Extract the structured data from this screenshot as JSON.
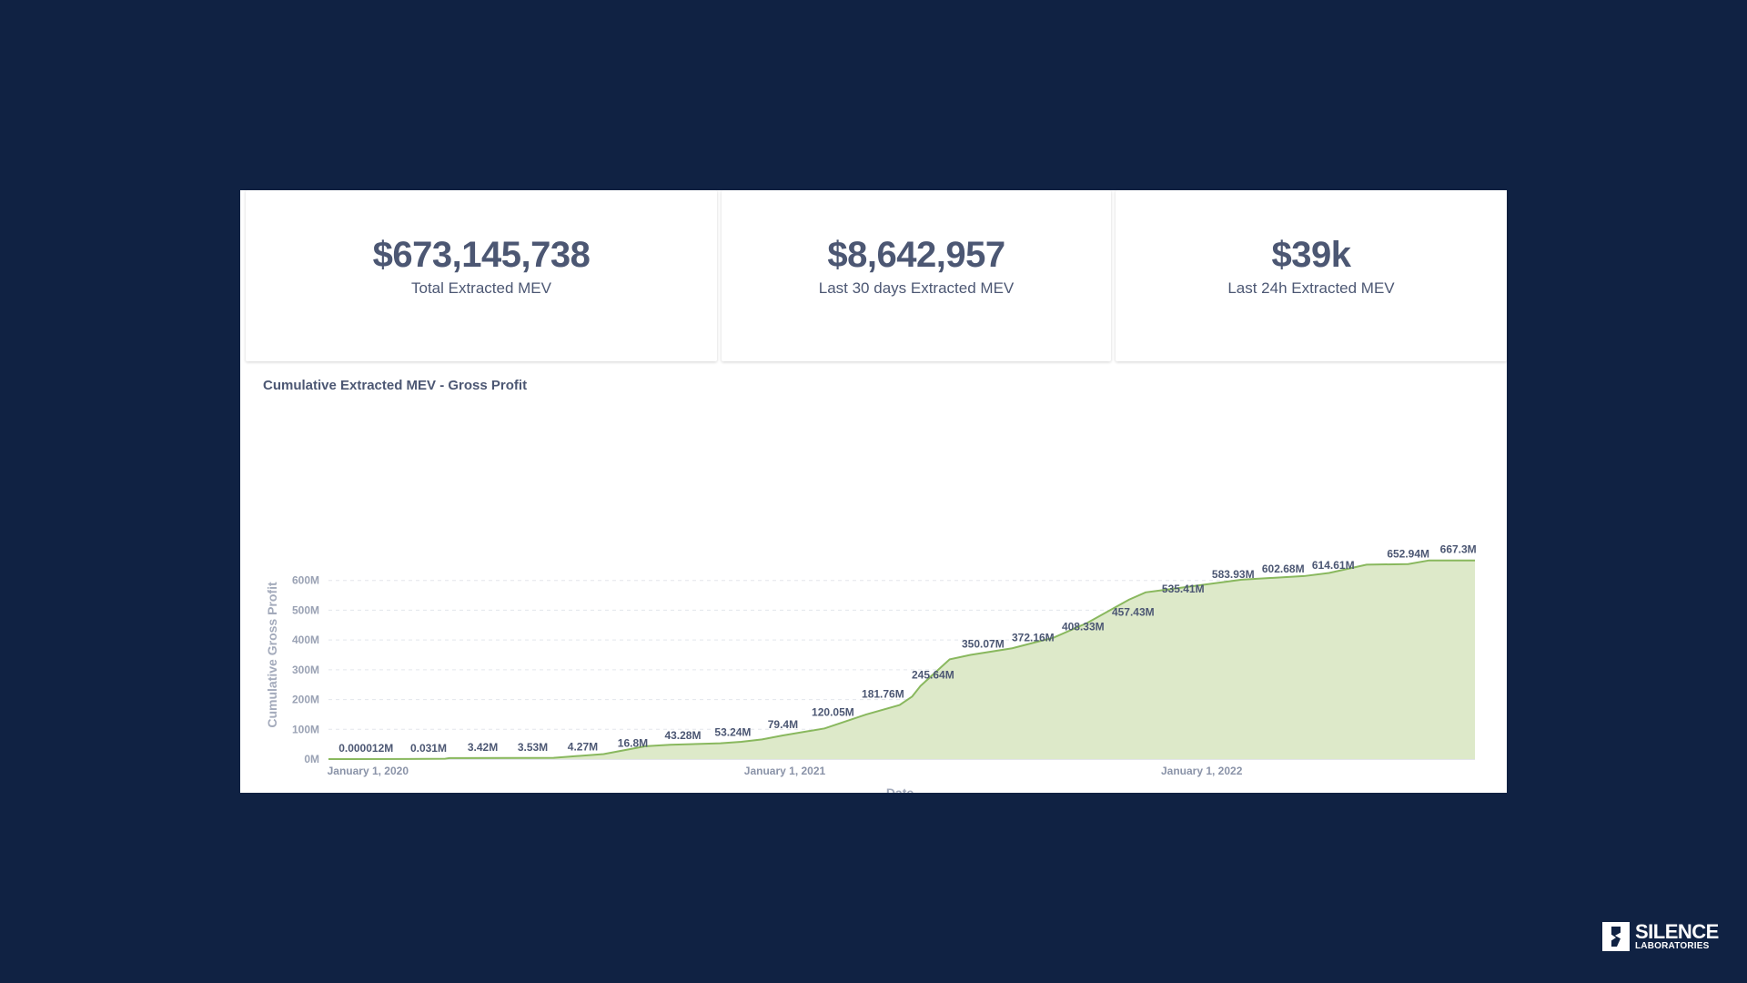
{
  "stats": [
    {
      "value": "$673,145,738",
      "label": "Total Extracted MEV"
    },
    {
      "value": "$8,642,957",
      "label": "Last 30 days Extracted MEV"
    },
    {
      "value": "$39k",
      "label": "Last 24h Extracted MEV"
    }
  ],
  "brand": {
    "name": "SILENCE",
    "sub": "LABORATORIES"
  },
  "colors": {
    "background": "#102243",
    "text": "#4c5773",
    "area_fill": "#dde9c9",
    "line": "#89b85e",
    "grid": "#e3e6ec"
  },
  "chart_data": {
    "type": "area",
    "title": "Cumulative Extracted MEV - Gross Profit",
    "xlabel": "Date",
    "ylabel": "Cumulative Gross Profit",
    "ylim": [
      0,
      700
    ],
    "yticks": [
      0,
      100,
      200,
      300,
      400,
      500,
      600
    ],
    "ytick_labels": [
      "0M",
      "100M",
      "200M",
      "300M",
      "400M",
      "500M",
      "600M"
    ],
    "xlim": [
      2019.96,
      2022.71
    ],
    "xticks": [
      2020.0,
      2021.0,
      2022.0
    ],
    "xtick_labels": [
      "January 1, 2020",
      "January 1, 2021",
      "January 1, 2022"
    ],
    "series": [
      {
        "name": "Cumulative Gross Profit",
        "x": [
          2019.96,
          2020.15,
          2020.24,
          2020.25,
          2020.5,
          2020.62,
          2020.72,
          2020.78,
          2020.9,
          2020.95,
          2021.0,
          2021.05,
          2021.15,
          2021.25,
          2021.33,
          2021.36,
          2021.38,
          2021.45,
          2021.5,
          2021.6,
          2021.7,
          2021.78,
          2021.88,
          2021.92,
          2022.05,
          2022.15,
          2022.3,
          2022.36,
          2022.45,
          2022.55,
          2022.6,
          2022.71
        ],
        "y": [
          0,
          0.5,
          1,
          3.42,
          4.27,
          16.8,
          43.28,
          48,
          53.24,
          58,
          66,
          79.4,
          103,
          150,
          181.76,
          210,
          245.64,
          335,
          350.07,
          372.16,
          408.33,
          457.43,
          535.41,
          560,
          583.93,
          602.68,
          614.61,
          625,
          652.94,
          655,
          667.3,
          667.3
        ]
      }
    ],
    "annotations": [
      {
        "x": 2020.05,
        "y": 1.2e-05,
        "label": "0.000012M"
      },
      {
        "x": 2020.2,
        "y": 0.031,
        "label": "0.031M"
      },
      {
        "x": 2020.33,
        "y": 3.42,
        "label": "3.42M"
      },
      {
        "x": 2020.45,
        "y": 3.53,
        "label": "3.53M"
      },
      {
        "x": 2020.57,
        "y": 4.27,
        "label": "4.27M"
      },
      {
        "x": 2020.69,
        "y": 16.8,
        "label": "16.8M"
      },
      {
        "x": 2020.81,
        "y": 43.28,
        "label": "43.28M"
      },
      {
        "x": 2020.93,
        "y": 53.24,
        "label": "53.24M"
      },
      {
        "x": 2021.05,
        "y": 79.4,
        "label": "79.4M"
      },
      {
        "x": 2021.17,
        "y": 120.05,
        "label": "120.05M"
      },
      {
        "x": 2021.29,
        "y": 181.76,
        "label": "181.76M"
      },
      {
        "x": 2021.41,
        "y": 245.64,
        "label": "245.64M"
      },
      {
        "x": 2021.53,
        "y": 350.07,
        "label": "350.07M"
      },
      {
        "x": 2021.65,
        "y": 372.16,
        "label": "372.16M"
      },
      {
        "x": 2021.77,
        "y": 408.33,
        "label": "408.33M"
      },
      {
        "x": 2021.89,
        "y": 457.43,
        "label": "457.43M"
      },
      {
        "x": 2022.01,
        "y": 535.41,
        "label": "535.41M"
      },
      {
        "x": 2022.13,
        "y": 583.93,
        "label": "583.93M"
      },
      {
        "x": 2022.25,
        "y": 602.68,
        "label": "602.68M"
      },
      {
        "x": 2022.37,
        "y": 614.61,
        "label": "614.61M"
      },
      {
        "x": 2022.55,
        "y": 652.94,
        "label": "652.94M"
      },
      {
        "x": 2022.67,
        "y": 667.3,
        "label": "667.3M"
      }
    ]
  }
}
